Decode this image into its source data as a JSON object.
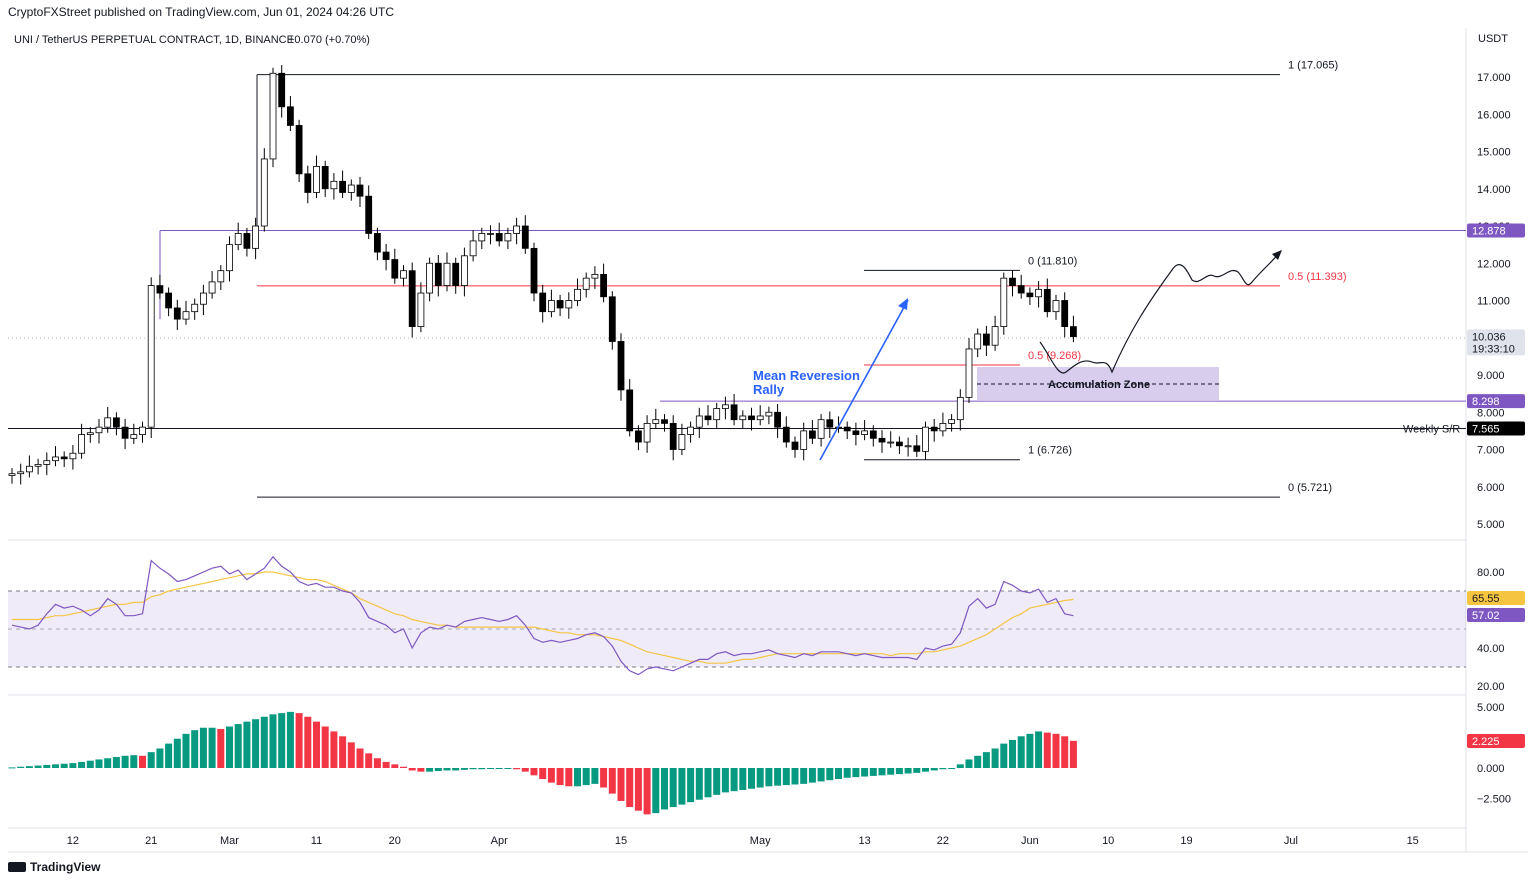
{
  "header": {
    "published": "CryptoFXStreet published on TradingView.com, Jun 01, 2024 04:26 UTC",
    "symbol": "UNI / TetherUS PERPETUAL CONTRACT, 1D, BINANCE",
    "change": "+0.070 (+0.70%)",
    "currency": "USDT"
  },
  "footer": {
    "brand": "TradingView"
  },
  "colors": {
    "up": "#ffffff",
    "down": "#000000",
    "purple": "#7e57c2",
    "red": "#f23645",
    "blue": "#2962ff",
    "rsi": "#7e57c2",
    "rsi_ma": "#f5c542",
    "hist_up": "#089981",
    "hist_down": "#f23645"
  },
  "chart_data": [
    {
      "type": "candlestick",
      "name": "price",
      "y_ticks": [
        5,
        6,
        7,
        8,
        9,
        10,
        11,
        12,
        13,
        14,
        15,
        16,
        17
      ],
      "y_tick_labels": [
        "5.000",
        "6.000",
        "7.000",
        "8.000",
        "9.000",
        "10.000",
        "11.000",
        "12.000",
        "13.000",
        "14.000",
        "15.000",
        "16.000",
        "17.000"
      ],
      "x_ticks": [
        {
          "i": 7,
          "label": "12"
        },
        {
          "i": 16,
          "label": "21"
        },
        {
          "i": 25,
          "label": "Mar"
        },
        {
          "i": 35,
          "label": "11"
        },
        {
          "i": 44,
          "label": "20"
        },
        {
          "i": 56,
          "label": "Apr"
        },
        {
          "i": 70,
          "label": "15"
        },
        {
          "i": 86,
          "label": "May"
        },
        {
          "i": 98,
          "label": "13"
        },
        {
          "i": 107,
          "label": "22"
        },
        {
          "i": 117,
          "label": "Jun"
        },
        {
          "i": 126,
          "label": "10"
        },
        {
          "i": 135,
          "label": "19"
        },
        {
          "i": 147,
          "label": "Jul"
        },
        {
          "i": 161,
          "label": "15"
        }
      ],
      "closes": [
        6.35,
        6.4,
        6.55,
        6.6,
        6.7,
        6.8,
        6.75,
        6.9,
        7.4,
        7.45,
        7.6,
        7.85,
        7.6,
        7.3,
        7.4,
        7.6,
        11.4,
        11.2,
        10.8,
        10.5,
        10.7,
        10.9,
        11.2,
        11.5,
        11.8,
        12.5,
        12.8,
        12.4,
        13.0,
        14.8,
        17.1,
        16.2,
        15.7,
        14.4,
        13.9,
        14.6,
        14.0,
        14.2,
        13.9,
        14.1,
        13.8,
        12.8,
        12.3,
        12.1,
        11.6,
        11.8,
        10.3,
        11.2,
        12.0,
        11.4,
        12.0,
        11.4,
        12.2,
        12.6,
        12.8,
        12.8,
        12.6,
        12.8,
        13.0,
        12.4,
        11.2,
        10.7,
        11.0,
        10.8,
        11.0,
        11.3,
        11.6,
        11.7,
        11.1,
        9.9,
        8.6,
        7.5,
        7.2,
        7.7,
        7.8,
        7.7,
        7.0,
        7.4,
        7.6,
        7.9,
        7.8,
        8.1,
        8.2,
        7.8,
        7.9,
        7.8,
        7.9,
        8.0,
        7.6,
        7.2,
        7.0,
        7.5,
        7.3,
        7.8,
        7.6,
        7.6,
        7.5,
        7.4,
        7.5,
        7.3,
        7.2,
        7.2,
        7.1,
        7.1,
        6.95,
        7.6,
        7.5,
        7.7,
        7.8,
        8.4,
        9.7,
        10.1,
        9.8,
        10.3,
        11.6,
        11.4,
        11.2,
        11.1,
        11.3,
        10.7,
        11.0,
        10.3,
        10.03
      ],
      "annotations": {
        "horizontal_levels": [
          {
            "label": "1 (17.065)",
            "value": 17.065
          },
          {
            "label": "0 (5.721)",
            "value": 5.721
          },
          {
            "label": "0 (11.810)",
            "value": 11.81
          },
          {
            "label": "0.5 (11.393)",
            "value": 11.393
          },
          {
            "label": "0.5 (9.268)",
            "value": 9.268
          },
          {
            "label": "1 (6.726)",
            "value": 6.726
          },
          {
            "label": "Weekly S/R",
            "value": 7.565
          }
        ],
        "price_badges": [
          {
            "label": "12.878",
            "value": 12.878,
            "color": "#7e57c2"
          },
          {
            "label": "10.036",
            "value": 10.036,
            "color": "#e0e3eb",
            "sub": "19:33:10"
          },
          {
            "label": "8.298",
            "value": 8.298,
            "color": "#7e57c2"
          },
          {
            "label": "7.565",
            "value": 7.565,
            "color": "#000000"
          }
        ],
        "text": [
          "Mean Reveresion",
          "Rally",
          "Accumulation Zone"
        ]
      }
    },
    {
      "type": "line",
      "name": "RSI",
      "y_ticks": [
        20,
        40,
        80
      ],
      "y_tick_labels": [
        "20.00",
        "40.00",
        "80.00"
      ],
      "badges": [
        "65.55",
        "57.02"
      ],
      "rsi": [
        52,
        51,
        50,
        52,
        58,
        63,
        61,
        62,
        60,
        57,
        60,
        66,
        63,
        57,
        57,
        58,
        86,
        82,
        79,
        75,
        76,
        78,
        80,
        82,
        83,
        79,
        81,
        76,
        79,
        82,
        88,
        83,
        80,
        75,
        73,
        74,
        72,
        72,
        70,
        69,
        64,
        56,
        54,
        52,
        48,
        50,
        40,
        48,
        51,
        50,
        52,
        51,
        54,
        55,
        56,
        55,
        54,
        55,
        57,
        52,
        45,
        43,
        44,
        43,
        44,
        45,
        47,
        48,
        46,
        41,
        33,
        28,
        26,
        29,
        30,
        29,
        28,
        30,
        32,
        34,
        34,
        37,
        38,
        36,
        37,
        37,
        38,
        39,
        37,
        36,
        35,
        37,
        36,
        38,
        38,
        38,
        37,
        36,
        37,
        36,
        35,
        35,
        35,
        35,
        34,
        40,
        39,
        41,
        42,
        48,
        62,
        66,
        61,
        63,
        75,
        73,
        70,
        69,
        71,
        64,
        66,
        58,
        57
      ],
      "rsi_ma": [
        55,
        55,
        55,
        55,
        56,
        57,
        57,
        58,
        59,
        60,
        61,
        62,
        63,
        63,
        64,
        64,
        67,
        68,
        70,
        71,
        72,
        73,
        74,
        75,
        76,
        77,
        78,
        79,
        79,
        80,
        80,
        79,
        78,
        77,
        76,
        76,
        75,
        73,
        71,
        69,
        66,
        64,
        62,
        60,
        58,
        57,
        55,
        54,
        53,
        52,
        52,
        51,
        51,
        51,
        51,
        51,
        51,
        51,
        51,
        51,
        51,
        50,
        49,
        48,
        48,
        47,
        47,
        47,
        46,
        45,
        44,
        42,
        40,
        38,
        37,
        36,
        35,
        34,
        33,
        33,
        32,
        32,
        32,
        33,
        34,
        34,
        35,
        36,
        37,
        37,
        37,
        37,
        37,
        37,
        37,
        37,
        37,
        37,
        37,
        37,
        37,
        36,
        37,
        37,
        37,
        38,
        38,
        39,
        40,
        41,
        43,
        45,
        47,
        50,
        53,
        56,
        58,
        61,
        62,
        63,
        64,
        65,
        65.5
      ],
      "band": [
        30,
        70
      ]
    },
    {
      "type": "bar",
      "name": "MACD histogram",
      "y_ticks": [
        -2.5,
        0,
        5
      ],
      "y_tick_labels": [
        "−2.500",
        "0.000",
        "5.000"
      ],
      "badge": "2.225",
      "values": [
        0.05,
        0.1,
        0.15,
        0.2,
        0.25,
        0.3,
        0.35,
        0.4,
        0.5,
        0.6,
        0.7,
        0.8,
        0.9,
        1.0,
        1.05,
        1.0,
        1.3,
        1.6,
        2.0,
        2.4,
        2.8,
        3.1,
        3.3,
        3.3,
        3.2,
        3.4,
        3.6,
        3.8,
        4.0,
        4.2,
        4.4,
        4.5,
        4.6,
        4.5,
        4.2,
        3.8,
        3.4,
        3.0,
        2.6,
        2.1,
        1.6,
        1.2,
        0.8,
        0.5,
        0.3,
        0.1,
        -0.2,
        -0.3,
        -0.3,
        -0.25,
        -0.2,
        -0.2,
        -0.15,
        -0.1,
        -0.1,
        -0.05,
        -0.05,
        0.0,
        -0.1,
        -0.3,
        -0.6,
        -0.9,
        -1.2,
        -1.4,
        -1.5,
        -1.5,
        -1.4,
        -1.3,
        -1.6,
        -2.1,
        -2.7,
        -3.2,
        -3.5,
        -3.8,
        -3.7,
        -3.4,
        -3.2,
        -3.0,
        -2.8,
        -2.6,
        -2.4,
        -2.2,
        -2.0,
        -1.9,
        -1.8,
        -1.7,
        -1.6,
        -1.5,
        -1.45,
        -1.4,
        -1.35,
        -1.3,
        -1.2,
        -1.1,
        -1.0,
        -0.9,
        -0.8,
        -0.75,
        -0.7,
        -0.65,
        -0.6,
        -0.55,
        -0.5,
        -0.45,
        -0.4,
        -0.3,
        -0.2,
        -0.1,
        0.0,
        0.3,
        0.7,
        1.0,
        1.3,
        1.6,
        2.0,
        2.3,
        2.6,
        2.8,
        3.0,
        2.9,
        2.8,
        2.6,
        2.225
      ]
    }
  ]
}
